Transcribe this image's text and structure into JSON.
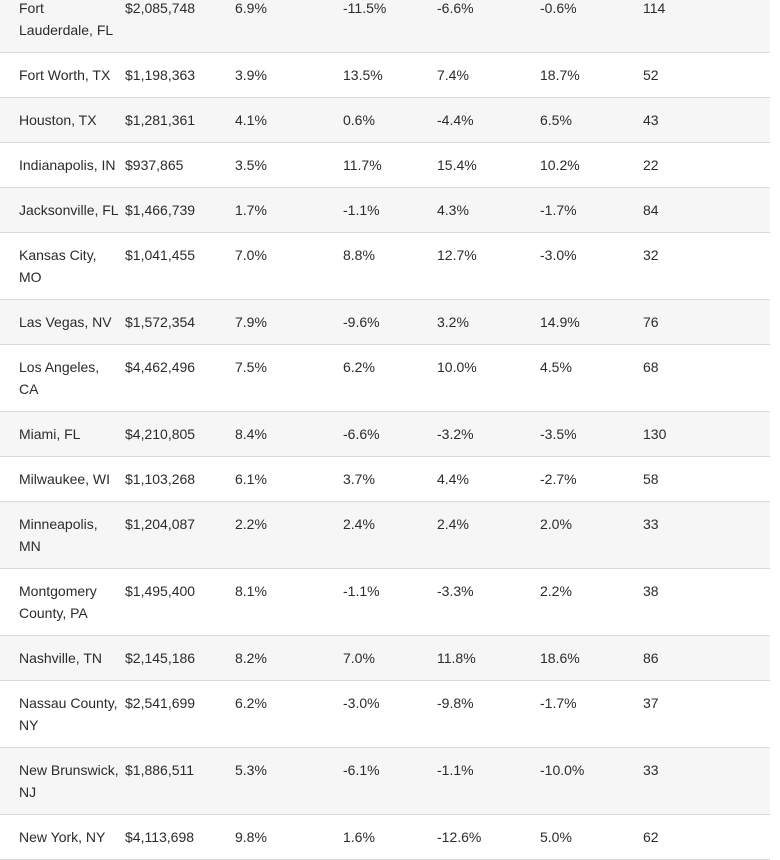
{
  "rows": [
    [
      "Fort Lauderdale, FL",
      "$2,085,748",
      "6.9%",
      "-11.5%",
      "-6.6%",
      "-0.6%",
      "114"
    ],
    [
      "Fort Worth, TX",
      "$1,198,363",
      "3.9%",
      "13.5%",
      "7.4%",
      "18.7%",
      "52"
    ],
    [
      "Houston, TX",
      "$1,281,361",
      "4.1%",
      "0.6%",
      "-4.4%",
      "6.5%",
      "43"
    ],
    [
      "Indianapolis, IN",
      "$937,865",
      "3.5%",
      "11.7%",
      "15.4%",
      "10.2%",
      "22"
    ],
    [
      "Jacksonville, FL",
      "$1,466,739",
      "1.7%",
      "-1.1%",
      "4.3%",
      "-1.7%",
      "84"
    ],
    [
      "Kansas City, MO",
      "$1,041,455",
      "7.0%",
      "8.8%",
      "12.7%",
      "-3.0%",
      "32"
    ],
    [
      "Las Vegas, NV",
      "$1,572,354",
      "7.9%",
      "-9.6%",
      "3.2%",
      "14.9%",
      "76"
    ],
    [
      "Los Angeles, CA",
      "$4,462,496",
      "7.5%",
      "6.2%",
      "10.0%",
      "4.5%",
      "68"
    ],
    [
      "Miami, FL",
      "$4,210,805",
      "8.4%",
      "-6.6%",
      "-3.2%",
      "-3.5%",
      "130"
    ],
    [
      "Milwaukee, WI",
      "$1,103,268",
      "6.1%",
      "3.7%",
      "4.4%",
      "-2.7%",
      "58"
    ],
    [
      "Minneapolis, MN",
      "$1,204,087",
      "2.2%",
      "2.4%",
      "2.4%",
      "2.0%",
      "33"
    ],
    [
      "Montgomery County, PA",
      "$1,495,400",
      "8.1%",
      "-1.1%",
      "-3.3%",
      "2.2%",
      "38"
    ],
    [
      "Nashville, TN",
      "$2,145,186",
      "8.2%",
      "7.0%",
      "11.8%",
      "18.6%",
      "86"
    ],
    [
      "Nassau County, NY",
      "$2,541,699",
      "6.2%",
      "-3.0%",
      "-9.8%",
      "-1.7%",
      "37"
    ],
    [
      "New Brunswick, NJ",
      "$1,886,511",
      "5.3%",
      "-6.1%",
      "-1.1%",
      "-10.0%",
      "33"
    ],
    [
      "New York, NY",
      "$4,113,698",
      "9.8%",
      "1.6%",
      "-12.6%",
      "5.0%",
      "62"
    ]
  ]
}
